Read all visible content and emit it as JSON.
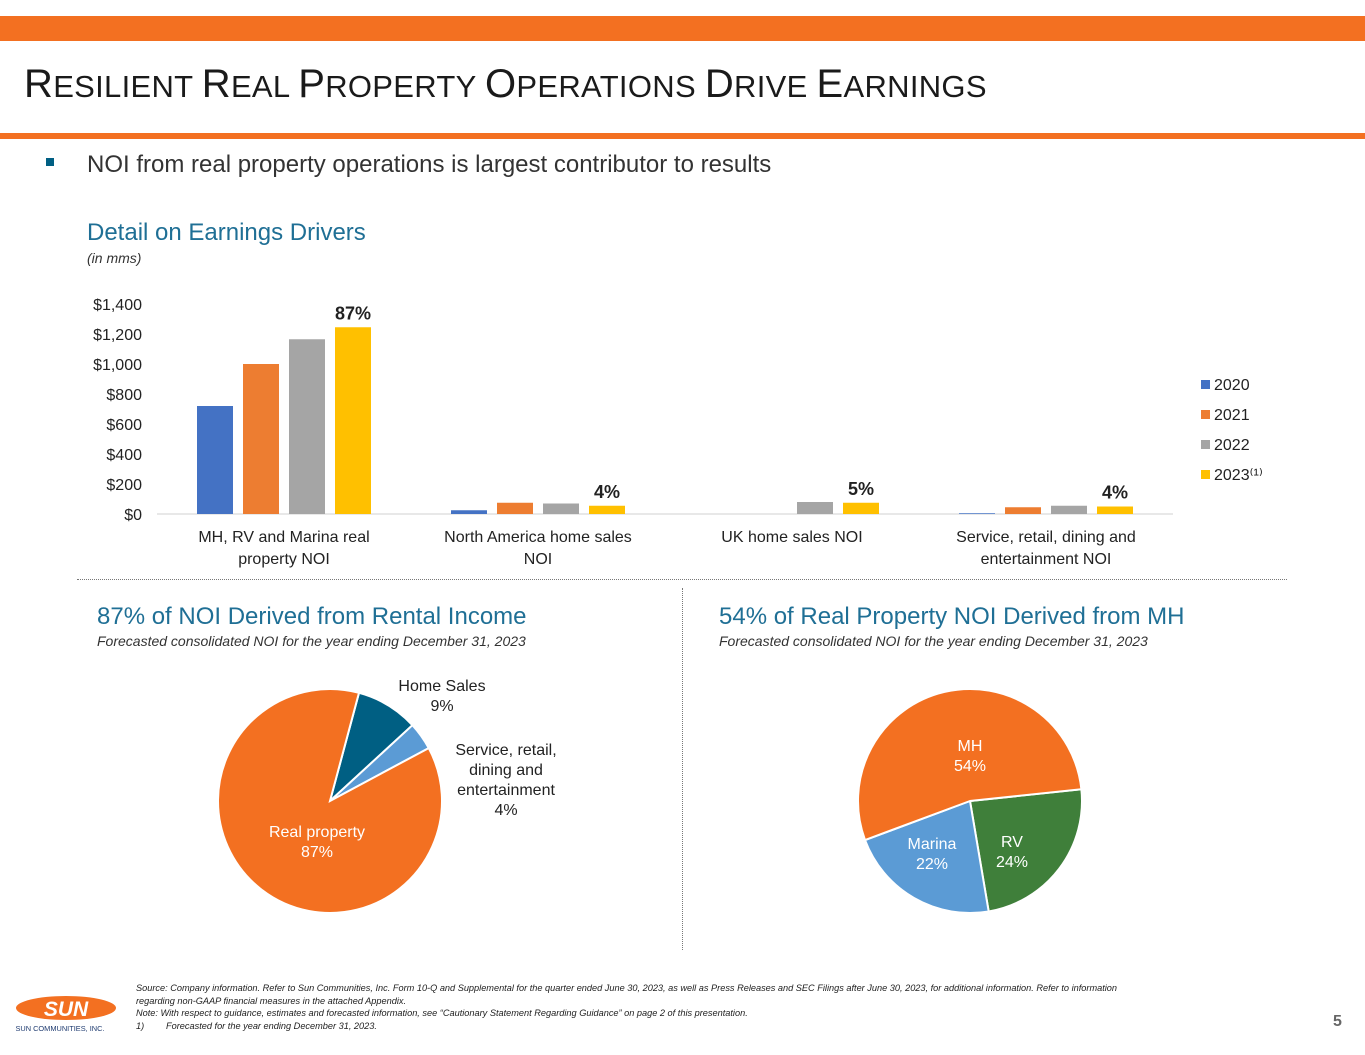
{
  "slide": {
    "title_parts": [
      {
        "big": "R",
        "small": "ESILIENT "
      },
      {
        "big": "R",
        "small": "EAL "
      },
      {
        "big": "P",
        "small": "ROPERTY "
      },
      {
        "big": "O",
        "small": "PERATIONS "
      },
      {
        "big": "D",
        "small": "RIVE "
      },
      {
        "big": "E",
        "small": "ARNINGS"
      }
    ],
    "bullet": "NOI from real property operations is largest contributor to results",
    "page_number": "5",
    "logo_text": "SUN",
    "logo_caption": "SUN COMMUNITIES, INC."
  },
  "colors": {
    "orange": "#f37021",
    "teal_title": "#1f6f95",
    "s2020": "#4472c4",
    "s2021": "#ed7d31",
    "s2022": "#a5a5a5",
    "s2023": "#ffc000",
    "pie_home_sales": "#005f83",
    "pie_service": "#5b9bd5",
    "pie_rv": "#3f7f3a",
    "pie_marina": "#5b9bd5"
  },
  "bar_section": {
    "title": "Detail on Earnings Drivers",
    "subtitle": "(in mms)"
  },
  "left_pie_section": {
    "title": "87% of NOI Derived from Rental Income",
    "subtitle": "Forecasted consolidated NOI for the year ending December 31, 2023"
  },
  "right_pie_section": {
    "title": "54% of Real Property NOI Derived from MH",
    "subtitle": "Forecasted consolidated NOI for the year ending December 31, 2023"
  },
  "chart_data": [
    {
      "type": "bar",
      "title": "Detail on Earnings Drivers",
      "subtitle": "(in mms)",
      "categories": [
        [
          "MH, RV and Marina real",
          "property NOI"
        ],
        [
          "North America home sales",
          "NOI"
        ],
        [
          "UK home sales NOI"
        ],
        [
          "Service, retail, dining and",
          "entertainment NOI"
        ]
      ],
      "series": [
        {
          "name": "2020",
          "legend": "2020",
          "values": [
            720,
            25,
            0,
            5
          ]
        },
        {
          "name": "2021",
          "legend": "2021",
          "values": [
            1000,
            75,
            0,
            45
          ]
        },
        {
          "name": "2022",
          "legend": "2022",
          "values": [
            1165,
            70,
            80,
            55
          ]
        },
        {
          "name": "2023",
          "legend": "2023⁽¹⁾",
          "values": [
            1245,
            55,
            75,
            50
          ]
        }
      ],
      "data_labels": [
        "87%",
        "4%",
        "5%",
        "4%"
      ],
      "y_ticks": [
        "$0",
        "$200",
        "$400",
        "$600",
        "$800",
        "$1,000",
        "$1,200",
        "$1,400"
      ],
      "ylim": [
        0,
        1400
      ],
      "legend_position": "right"
    },
    {
      "type": "pie",
      "title": "87% of NOI Derived from Rental Income",
      "slices": [
        {
          "label": "Real property",
          "value": 87,
          "display": "87%"
        },
        {
          "label": "Home Sales",
          "value": 9,
          "display": "9%"
        },
        {
          "label": "Service, retail, dining and entertainment",
          "label_lines": [
            "Service, retail,",
            "dining and",
            "entertainment"
          ],
          "value": 4,
          "display": "4%"
        }
      ]
    },
    {
      "type": "pie",
      "title": "54% of Real Property NOI Derived from MH",
      "slices": [
        {
          "label": "MH",
          "value": 54,
          "display": "54%"
        },
        {
          "label": "RV",
          "value": 24,
          "display": "24%"
        },
        {
          "label": "Marina",
          "value": 22,
          "display": "22%"
        }
      ]
    }
  ],
  "footnote": {
    "source_1": "Source: Company information. Refer to Sun Communities, Inc. Form 10-Q and Supplemental for the quarter ended June 30, 2023, as well as Press Releases and SEC Filings after June 30, 2023, for additional information. Refer to information",
    "source_2": "regarding non-GAAP financial measures in the attached Appendix.",
    "note": "Note: With respect to guidance, estimates and forecasted information, see “Cautionary Statement Regarding Guidance” on page 2 of this presentation.",
    "item_1_num": "1)",
    "item_1_text": "Forecasted for the year ending December 31, 2023."
  }
}
